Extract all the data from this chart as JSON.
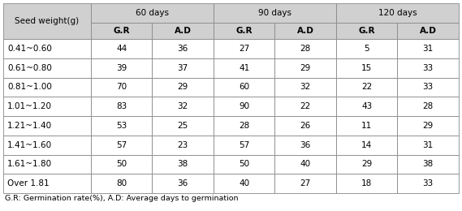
{
  "header_row1_labels": [
    "Seed weight(g)",
    "60 days",
    "90 days",
    "120 days"
  ],
  "header_row2_labels": [
    "G.R",
    "A.D",
    "G.R",
    "A.D",
    "G.R",
    "A.D"
  ],
  "rows": [
    [
      "0.41~0.60",
      "44",
      "36",
      "27",
      "28",
      "5",
      "31"
    ],
    [
      "0.61~0.80",
      "39",
      "37",
      "41",
      "29",
      "15",
      "33"
    ],
    [
      "0.81~1.00",
      "70",
      "29",
      "60",
      "32",
      "22",
      "33"
    ],
    [
      "1.01~1.20",
      "83",
      "32",
      "90",
      "22",
      "43",
      "28"
    ],
    [
      "1.21~1.40",
      "53",
      "25",
      "28",
      "26",
      "11",
      "29"
    ],
    [
      "1.41~1.60",
      "57",
      "23",
      "57",
      "36",
      "14",
      "31"
    ],
    [
      "1.61~1.80",
      "50",
      "38",
      "50",
      "40",
      "29",
      "38"
    ],
    [
      "Over 1.81",
      "80",
      "36",
      "40",
      "27",
      "18",
      "33"
    ]
  ],
  "footnote": "G.R: Germination rate(%), A.D: Average days to germination",
  "header_bg": "#d0d0d0",
  "body_bg": "#ffffff",
  "border_color": "#888888",
  "header_font_size": 7.5,
  "body_font_size": 7.5,
  "footnote_font_size": 6.8
}
